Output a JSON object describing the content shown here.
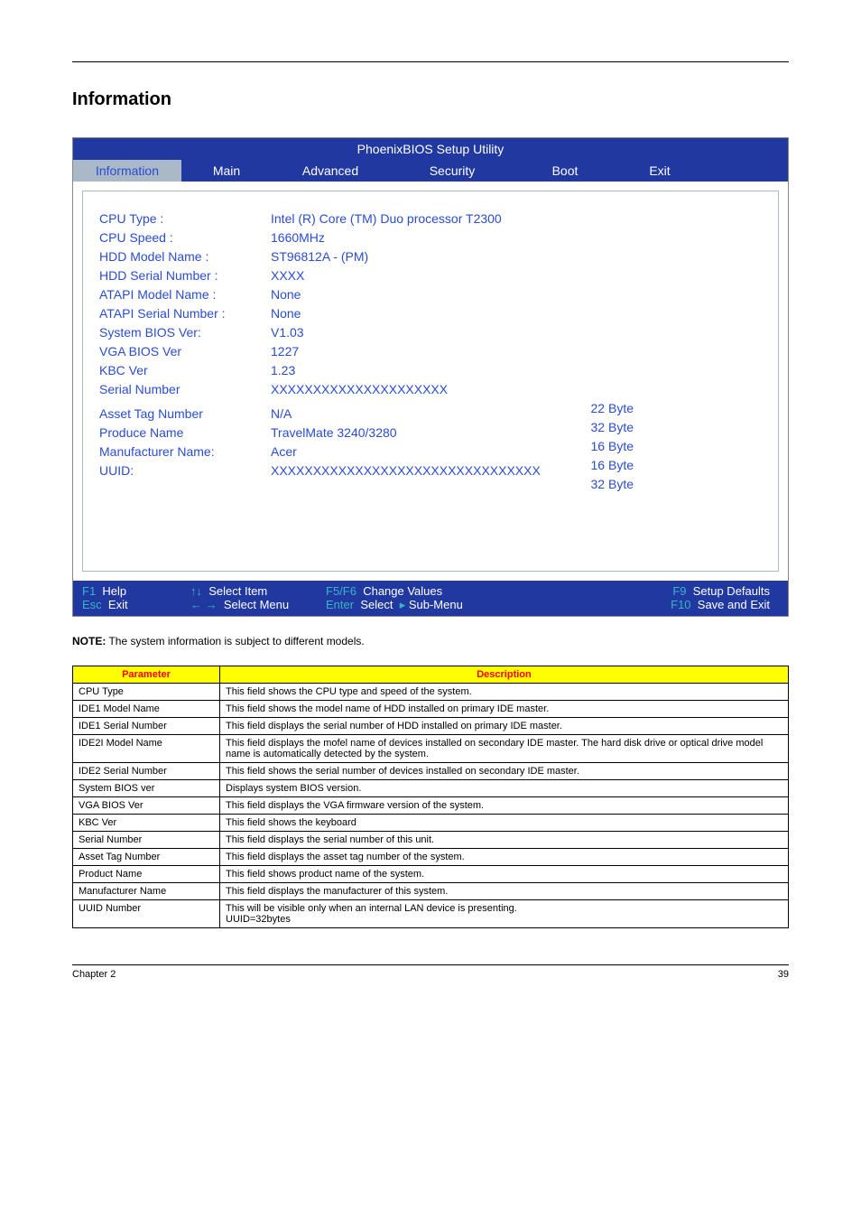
{
  "page": {
    "section_title": "Information",
    "chapter": "Chapter 2",
    "page_number": "39"
  },
  "bios": {
    "title": "PhoenixBIOS Setup Utility",
    "tabs": {
      "info": "Information",
      "main": "Main",
      "adv": "Advanced",
      "sec": "Security",
      "boot": "Boot",
      "exit": "Exit"
    },
    "fields": [
      {
        "label": "CPU Type :",
        "value": "Intel (R) Core (TM) Duo processor T2300"
      },
      {
        "label": "CPU Speed :",
        "value": "1660MHz"
      },
      {
        "label": "HDD Model Name :",
        "value": "ST96812A - (PM)"
      },
      {
        "label": "HDD Serial Number :",
        "value": "XXXX"
      },
      {
        "label": "ATAPI Model Name :",
        "value": "None"
      },
      {
        "label": "ATAPI Serial Number :",
        "value": "None"
      },
      {
        "label": "System BIOS Ver:",
        "value": "V1.03"
      },
      {
        "label": "VGA BIOS Ver",
        "value": "1227"
      },
      {
        "label": "KBC Ver",
        "value": "1.23"
      },
      {
        "label": "Serial Number",
        "value": "XXXXXXXXXXXXXXXXXXXXX"
      },
      {
        "label": "Asset Tag Number",
        "value": "N/A"
      },
      {
        "label": "Produce Name",
        "value": "TravelMate 3240/3280"
      },
      {
        "label": "Manufacturer Name:",
        "value": "Acer"
      },
      {
        "label": "UUID:",
        "value": "XXXXXXXXXXXXXXXXXXXXXXXXXXXXXXXX"
      }
    ],
    "right_bytes": [
      "22 Byte",
      "32 Byte",
      "16 Byte",
      "16 Byte",
      "32 Byte"
    ],
    "footer": {
      "r1": {
        "c1k": "F1",
        "c1t": "Help",
        "c2k": "↑↓",
        "c2t": "Select Item",
        "c3k": "F5/F6",
        "c3t": "Change Values",
        "c4k": "F9",
        "c4t": "Setup Defaults"
      },
      "r2": {
        "c1k": "Esc",
        "c1t": "Exit",
        "c2k": "← →",
        "c2t": "Select Menu",
        "c3k": "Enter",
        "c3t": "Select",
        "c3arrow": "▸",
        "c3sub": "Sub-Menu",
        "c4k": "F10",
        "c4t": "Save and Exit"
      }
    }
  },
  "note": {
    "label": "NOTE:",
    "text": "The system information is subject to different models."
  },
  "param_table": {
    "headers": {
      "p": "Parameter",
      "d": "Description"
    },
    "rows": [
      {
        "p": "CPU Type",
        "d": "This field shows the CPU type and speed of the system."
      },
      {
        "p": "IDE1 Model Name",
        "d": "This field shows the model name of HDD installed on primary IDE master."
      },
      {
        "p": "IDE1 Serial Number",
        "d": "This field displays the serial number of HDD installed on primary IDE master."
      },
      {
        "p": "IDE2I Model Name",
        "d": "This field displays the mofel name of devices installed on secondary IDE master. The hard disk drive or optical drive model name is automatically detected by the system."
      },
      {
        "p": "IDE2 Serial Number",
        "d": "This field shows the serial number of devices installed on secondary IDE master."
      },
      {
        "p": "System BIOS ver",
        "d": "Displays system BIOS version."
      },
      {
        "p": "VGA BIOS Ver",
        "d": "This field displays the VGA firmware version of the system."
      },
      {
        "p": "KBC Ver",
        "d": "This field shows the keyboard"
      },
      {
        "p": "Serial Number",
        "d": "This field displays the serial number of this unit."
      },
      {
        "p": "Asset Tag Number",
        "d": "This field displays the asset tag number of the system."
      },
      {
        "p": "Product Name",
        "d": "This field shows product name of the system."
      },
      {
        "p": "Manufacturer Name",
        "d": "This field displays the manufacturer of this system."
      },
      {
        "p": "UUID Number",
        "d": "This will be visible only when an internal LAN device is presenting.\nUUID=32bytes"
      }
    ]
  }
}
